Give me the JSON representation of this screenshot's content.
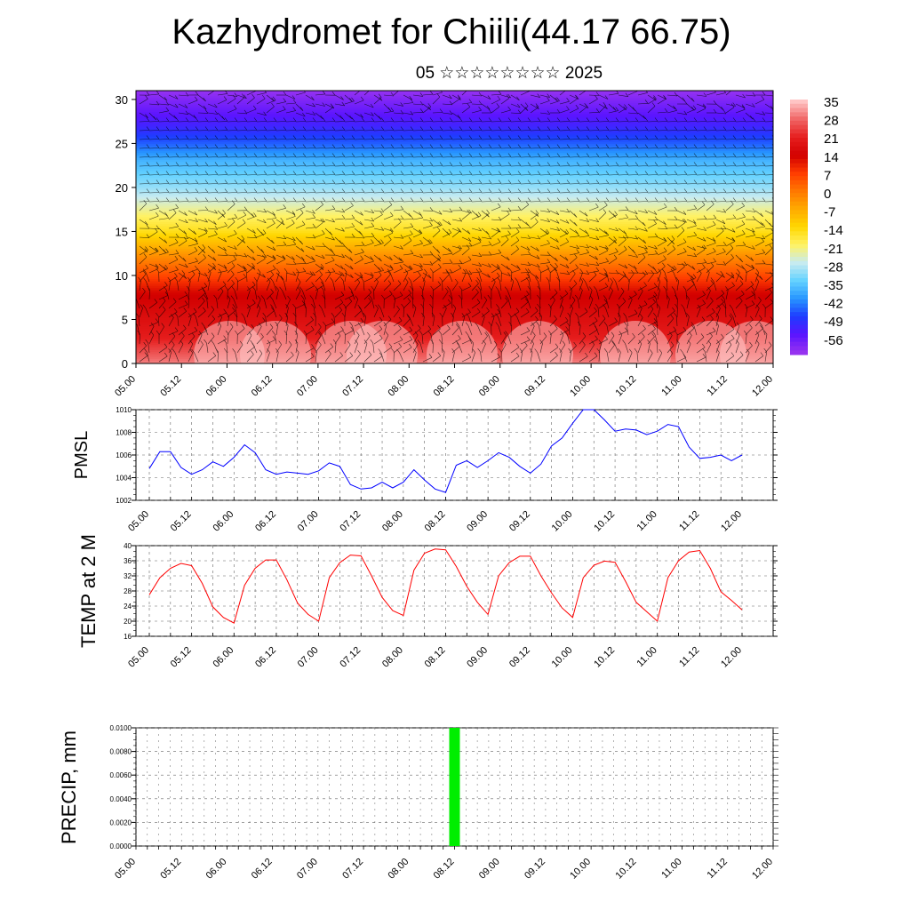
{
  "header": {
    "title": "Kazhydromet for Chiili(44.17 66.75)",
    "date": "05 ☆☆☆☆☆☆☆☆ 2025"
  },
  "colors": {
    "pmsl_line": "#0000ff",
    "temp_line": "#ff0000",
    "precip_bar": "#00ee00",
    "wind_barbs": "#000000"
  },
  "chart_data": [
    {
      "id": "cross_section",
      "type": "heatmap",
      "title": "",
      "xlabel": "",
      "ylabel": "",
      "x_ticks": [
        "05.00",
        "05.12",
        "06.00",
        "06.12",
        "07.00",
        "07.12",
        "08.00",
        "08.12",
        "09.00",
        "09.12",
        "10.00",
        "10.12",
        "11.00",
        "11.12",
        "12.00"
      ],
      "y_ticks": [
        0,
        5,
        10,
        15,
        20,
        25,
        30
      ],
      "ylim": [
        0,
        31
      ],
      "legend_levels": [
        "35",
        "28",
        "21",
        "14",
        "7",
        "0",
        "-7",
        "-14",
        "-21",
        "-28",
        "-35",
        "-42",
        "-49",
        "-56"
      ],
      "colormap": [
        "#ffc4c4",
        "#f06464",
        "#e61e1e",
        "#d20000",
        "#ff3c00",
        "#ff7800",
        "#ffaa00",
        "#ffd700",
        "#fff264",
        "#c8ebf0",
        "#64d2ff",
        "#2896ff",
        "#1e3cff",
        "#5a14ff",
        "#9632f0"
      ],
      "overlay": "wind barbs"
    },
    {
      "id": "pmsl",
      "type": "line",
      "ylabel": "PMSL",
      "ylim": [
        1002,
        1010
      ],
      "y_ticks": [
        1002,
        1004,
        1006,
        1008,
        1010
      ],
      "x_ticks": [
        "05.00",
        "05.12",
        "06.00",
        "06.12",
        "07.00",
        "07.12",
        "08.00",
        "08.12",
        "09.00",
        "09.12",
        "10.00",
        "10.12",
        "11.00",
        "11.12",
        "12.00"
      ],
      "x_hours": [
        0,
        3,
        6,
        9,
        12,
        15,
        18,
        21,
        24,
        27,
        30,
        33,
        36,
        39,
        42,
        45,
        48,
        51,
        54,
        57,
        60,
        63,
        66,
        69,
        72,
        75,
        78,
        81,
        84,
        87,
        90,
        93,
        96,
        99,
        102,
        105,
        108,
        111,
        114,
        117,
        120,
        123,
        126,
        129,
        132,
        135,
        138,
        141,
        144,
        147,
        150,
        153,
        156,
        159,
        162,
        165,
        168
      ],
      "values": [
        1004.8,
        1006.3,
        1006.3,
        1004.9,
        1004.3,
        1004.7,
        1005.4,
        1005.0,
        1005.8,
        1006.9,
        1006.2,
        1004.7,
        1004.3,
        1004.5,
        1004.4,
        1004.3,
        1004.6,
        1005.3,
        1005.0,
        1003.4,
        1003.0,
        1003.1,
        1003.6,
        1003.1,
        1003.6,
        1004.7,
        1003.8,
        1003.0,
        1002.7,
        1005.1,
        1005.5,
        1004.9,
        1005.5,
        1006.2,
        1005.8,
        1005.0,
        1004.4,
        1005.2,
        1006.8,
        1007.5,
        1008.8,
        1010.0,
        1010.0,
        1009.1,
        1008.1,
        1008.3,
        1008.2,
        1007.8,
        1008.1,
        1008.7,
        1008.5,
        1006.7,
        1005.7,
        1005.8,
        1006.0,
        1005.5,
        1006.0
      ]
    },
    {
      "id": "temp2m",
      "type": "line",
      "ylabel": "TEMP at 2 M",
      "ylim": [
        16,
        40
      ],
      "y_ticks": [
        16,
        20,
        24,
        28,
        32,
        36,
        40
      ],
      "x_ticks": [
        "05.00",
        "05.12",
        "06.00",
        "06.12",
        "07.00",
        "07.12",
        "08.00",
        "08.12",
        "09.00",
        "09.12",
        "10.00",
        "10.12",
        "11.00",
        "11.12",
        "12.00"
      ],
      "x_hours": [
        0,
        3,
        6,
        9,
        12,
        15,
        18,
        21,
        24,
        27,
        30,
        33,
        36,
        39,
        42,
        45,
        48,
        51,
        54,
        57,
        60,
        63,
        66,
        69,
        72,
        75,
        78,
        81,
        84,
        87,
        90,
        93,
        96,
        99,
        102,
        105,
        108,
        111,
        114,
        117,
        120,
        123,
        126,
        129,
        132,
        135,
        138,
        141,
        144,
        147,
        150,
        153,
        156,
        159,
        162,
        165,
        168
      ],
      "values": [
        27.0,
        31.5,
        34.0,
        35.3,
        34.7,
        30.0,
        23.8,
        21.0,
        19.5,
        29.5,
        34.0,
        36.2,
        36.2,
        31.0,
        24.8,
        21.8,
        20.0,
        31.5,
        35.5,
        37.5,
        37.3,
        32.0,
        26.3,
        22.8,
        21.5,
        33.5,
        38.0,
        39.1,
        38.9,
        34.5,
        29.2,
        25.0,
        21.8,
        32.0,
        35.5,
        37.2,
        37.2,
        32.0,
        27.5,
        23.5,
        21.0,
        31.5,
        34.8,
        35.9,
        35.6,
        30.5,
        25.0,
        22.5,
        20.0,
        31.5,
        36.0,
        38.3,
        38.7,
        34.0,
        27.8,
        25.5,
        23.0
      ]
    },
    {
      "id": "precip",
      "type": "bar",
      "ylabel": "PRECIP, mm",
      "ylim": [
        0,
        0.01
      ],
      "y_ticks": [
        "0.0000",
        "0.0020",
        "0.0040",
        "0.0060",
        "0.0080",
        "0.0100"
      ],
      "x_ticks": [
        "05.00",
        "05.12",
        "06.00",
        "06.12",
        "07.00",
        "07.12",
        "08.00",
        "08.12",
        "09.00",
        "09.12",
        "10.00",
        "10.12",
        "11.00",
        "11.12",
        "12.00"
      ],
      "bars": [
        {
          "x_hours": 84,
          "value": 0.01
        }
      ]
    }
  ]
}
